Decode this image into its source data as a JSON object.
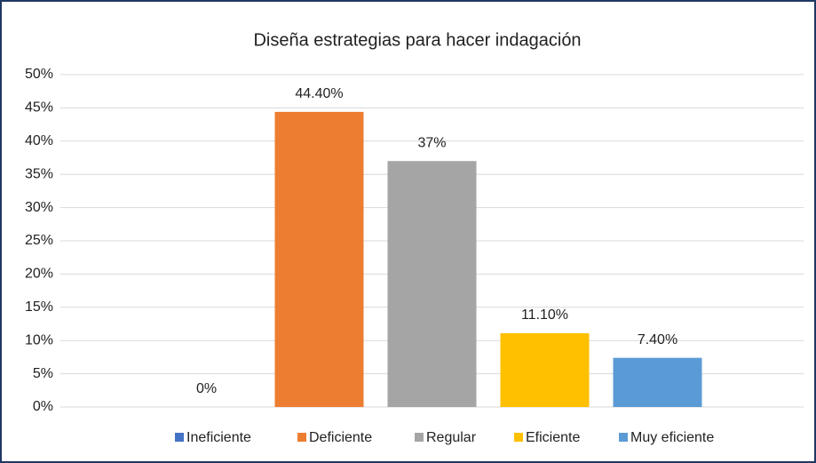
{
  "chart_data": {
    "type": "bar",
    "title": "Diseña estrategias para hacer indagación",
    "categories": [
      null
    ],
    "series": [
      {
        "name": "Ineficiente",
        "color": "#4472c4",
        "values": [
          0
        ],
        "value_labels": [
          "0%"
        ]
      },
      {
        "name": "Deficiente",
        "color": "#ed7d31",
        "values": [
          44.4
        ],
        "value_labels": [
          "44.40%"
        ]
      },
      {
        "name": "Regular",
        "color": "#a5a5a5",
        "values": [
          37
        ],
        "value_labels": [
          "37%"
        ]
      },
      {
        "name": "Eficiente",
        "color": "#ffc000",
        "values": [
          11.1
        ],
        "value_labels": [
          "11.10%"
        ]
      },
      {
        "name": "Muy eficiente",
        "color": "#5b9bd5",
        "values": [
          7.4
        ],
        "value_labels": [
          "7.40%"
        ]
      }
    ],
    "ylim": [
      0,
      50
    ],
    "yticks": [
      {
        "value": 0,
        "label": "0%"
      },
      {
        "value": 5,
        "label": "5%"
      },
      {
        "value": 10,
        "label": "10%"
      },
      {
        "value": 15,
        "label": "15%"
      },
      {
        "value": 20,
        "label": "20%"
      },
      {
        "value": 25,
        "label": "25%"
      },
      {
        "value": 30,
        "label": "30%"
      },
      {
        "value": 35,
        "label": "35%"
      },
      {
        "value": 40,
        "label": "40%"
      },
      {
        "value": 45,
        "label": "45%"
      },
      {
        "value": 50,
        "label": "50%"
      }
    ],
    "grid": true,
    "legend": "bottom"
  }
}
